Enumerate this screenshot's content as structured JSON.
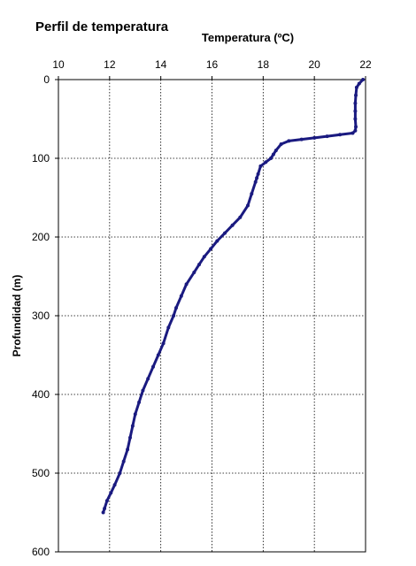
{
  "chart_data": {
    "type": "scatter",
    "title": "Perfil de temperatura",
    "xlabel": "Temperatura (ºC)",
    "ylabel": "Profundidad (m)",
    "x_axis_position": "top",
    "y_axis_inverted": true,
    "xlim": [
      10,
      22
    ],
    "ylim": [
      0,
      600
    ],
    "x_ticks": [
      10,
      12,
      14,
      16,
      18,
      20,
      22
    ],
    "y_ticks": [
      0,
      100,
      200,
      300,
      400,
      500,
      600
    ],
    "grid": true,
    "legend": "none",
    "colors": {
      "series": "#1a1a80",
      "grid": "#000000",
      "frame": "#000000"
    },
    "series": [
      {
        "x": [
          21.9,
          21.75,
          21.65,
          21.62,
          21.6,
          21.6,
          21.6,
          21.62,
          21.6,
          21.5,
          21.0,
          20.5,
          20.0,
          19.5,
          19.0,
          18.7,
          18.5,
          18.4,
          18.3,
          18.1,
          17.9,
          17.8,
          17.75,
          17.7,
          17.55,
          17.4,
          17.1,
          16.8,
          16.5,
          16.2,
          15.95,
          15.7,
          15.5,
          15.3,
          15.0,
          14.8,
          14.6,
          14.5,
          14.3,
          14.1,
          13.9,
          13.7,
          13.5,
          13.3,
          13.15,
          13.0,
          12.9,
          12.8,
          12.7,
          12.55,
          12.4,
          12.2,
          12.05,
          11.9,
          11.8,
          11.75
        ],
        "y": [
          0,
          5,
          10,
          20,
          30,
          40,
          50,
          60,
          65,
          68,
          70,
          72,
          74,
          76,
          78,
          82,
          90,
          95,
          100,
          105,
          110,
          120,
          125,
          130,
          145,
          160,
          175,
          185,
          195,
          205,
          215,
          225,
          235,
          245,
          260,
          275,
          290,
          300,
          315,
          335,
          350,
          365,
          380,
          395,
          410,
          425,
          440,
          455,
          470,
          485,
          500,
          515,
          525,
          535,
          545,
          550
        ]
      }
    ]
  }
}
